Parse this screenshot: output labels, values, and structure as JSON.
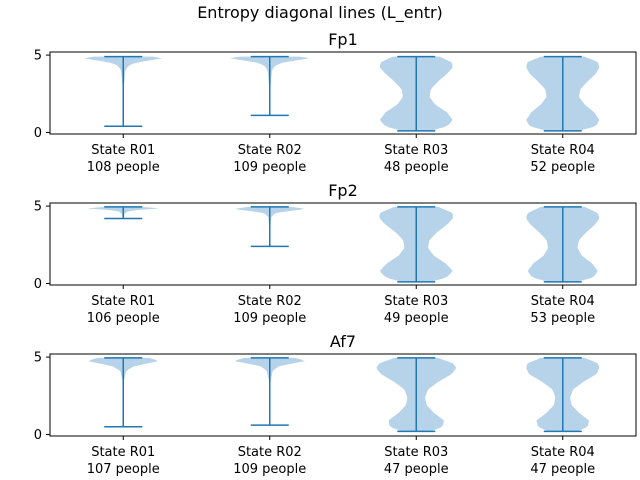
{
  "figure": {
    "title": "Entropy diagonal lines (L_entr)"
  },
  "colors": {
    "body": "#1f77b4",
    "violin": "#b6d3e9",
    "axes": "#000000",
    "background": "#ffffff"
  },
  "chart_data": [
    {
      "type": "violin",
      "title": "Fp1",
      "xlabel": "",
      "ylabel": "",
      "ylim": [
        -0.1,
        5.2
      ],
      "yticks": [
        0,
        5
      ],
      "grid": false,
      "legend": "none",
      "categories": [
        "State R01",
        "State R02",
        "State R03",
        "State R04"
      ],
      "counts": [
        "108 people",
        "109 people",
        "48 people",
        "52 people"
      ],
      "series": [
        {
          "min": 0.4,
          "max": 4.9,
          "profile": [
            [
              0.4,
              0.003
            ],
            [
              1.0,
              0.004
            ],
            [
              2.0,
              0.006
            ],
            [
              3.0,
              0.01
            ],
            [
              4.0,
              0.03
            ],
            [
              4.3,
              0.07
            ],
            [
              4.5,
              0.16
            ],
            [
              4.65,
              0.35
            ],
            [
              4.8,
              0.55
            ],
            [
              4.9,
              0.4
            ]
          ]
        },
        {
          "min": 1.1,
          "max": 4.9,
          "profile": [
            [
              1.1,
              0.003
            ],
            [
              2.0,
              0.005
            ],
            [
              3.0,
              0.01
            ],
            [
              4.0,
              0.03
            ],
            [
              4.3,
              0.07
            ],
            [
              4.5,
              0.16
            ],
            [
              4.65,
              0.35
            ],
            [
              4.8,
              0.55
            ],
            [
              4.9,
              0.4
            ]
          ]
        },
        {
          "min": 0.1,
          "max": 4.9,
          "profile": [
            [
              0.1,
              0.2
            ],
            [
              0.4,
              0.42
            ],
            [
              0.8,
              0.5
            ],
            [
              1.3,
              0.42
            ],
            [
              1.8,
              0.26
            ],
            [
              2.3,
              0.18
            ],
            [
              2.8,
              0.2
            ],
            [
              3.3,
              0.3
            ],
            [
              3.8,
              0.42
            ],
            [
              4.2,
              0.5
            ],
            [
              4.55,
              0.48
            ],
            [
              4.9,
              0.32
            ]
          ]
        },
        {
          "min": 0.1,
          "max": 4.9,
          "profile": [
            [
              0.1,
              0.22
            ],
            [
              0.4,
              0.45
            ],
            [
              0.8,
              0.5
            ],
            [
              1.3,
              0.43
            ],
            [
              1.8,
              0.3
            ],
            [
              2.3,
              0.22
            ],
            [
              2.8,
              0.24
            ],
            [
              3.3,
              0.34
            ],
            [
              3.8,
              0.45
            ],
            [
              4.2,
              0.5
            ],
            [
              4.55,
              0.48
            ],
            [
              4.9,
              0.3
            ]
          ]
        }
      ]
    },
    {
      "type": "violin",
      "title": "Fp2",
      "xlabel": "",
      "ylabel": "",
      "ylim": [
        -0.1,
        5.2
      ],
      "yticks": [
        0,
        5
      ],
      "grid": false,
      "legend": "none",
      "categories": [
        "State R01",
        "State R02",
        "State R03",
        "State R04"
      ],
      "counts": [
        "106 people",
        "109 people",
        "49 people",
        "53 people"
      ],
      "series": [
        {
          "min": 4.2,
          "max": 4.95,
          "profile": [
            [
              4.2,
              0.005
            ],
            [
              4.5,
              0.02
            ],
            [
              4.65,
              0.06
            ],
            [
              4.75,
              0.2
            ],
            [
              4.85,
              0.5
            ],
            [
              4.95,
              0.25
            ]
          ]
        },
        {
          "min": 2.4,
          "max": 4.95,
          "profile": [
            [
              2.4,
              0.003
            ],
            [
              3.5,
              0.006
            ],
            [
              4.3,
              0.02
            ],
            [
              4.55,
              0.08
            ],
            [
              4.7,
              0.3
            ],
            [
              4.8,
              0.5
            ],
            [
              4.95,
              0.3
            ]
          ]
        },
        {
          "min": 0.1,
          "max": 4.95,
          "profile": [
            [
              0.1,
              0.2
            ],
            [
              0.4,
              0.42
            ],
            [
              0.8,
              0.5
            ],
            [
              1.3,
              0.4
            ],
            [
              1.8,
              0.24
            ],
            [
              2.3,
              0.16
            ],
            [
              2.8,
              0.18
            ],
            [
              3.3,
              0.28
            ],
            [
              3.8,
              0.42
            ],
            [
              4.2,
              0.5
            ],
            [
              4.55,
              0.5
            ],
            [
              4.95,
              0.3
            ]
          ]
        },
        {
          "min": 0.1,
          "max": 4.95,
          "profile": [
            [
              0.1,
              0.2
            ],
            [
              0.4,
              0.42
            ],
            [
              0.8,
              0.48
            ],
            [
              1.3,
              0.4
            ],
            [
              1.8,
              0.26
            ],
            [
              2.3,
              0.2
            ],
            [
              2.8,
              0.22
            ],
            [
              3.3,
              0.32
            ],
            [
              3.8,
              0.44
            ],
            [
              4.2,
              0.5
            ],
            [
              4.55,
              0.48
            ],
            [
              4.95,
              0.3
            ]
          ]
        }
      ]
    },
    {
      "type": "violin",
      "title": "Af7",
      "xlabel": "",
      "ylabel": "",
      "ylim": [
        -0.1,
        5.2
      ],
      "yticks": [
        0,
        5
      ],
      "grid": false,
      "legend": "none",
      "categories": [
        "State R01",
        "State R02",
        "State R03",
        "State R04"
      ],
      "counts": [
        "107 people",
        "109 people",
        "47 people",
        "47 people"
      ],
      "series": [
        {
          "min": 0.5,
          "max": 4.95,
          "profile": [
            [
              0.5,
              0.003
            ],
            [
              1.5,
              0.004
            ],
            [
              2.5,
              0.006
            ],
            [
              3.5,
              0.012
            ],
            [
              4.1,
              0.04
            ],
            [
              4.4,
              0.14
            ],
            [
              4.6,
              0.34
            ],
            [
              4.75,
              0.5
            ],
            [
              4.95,
              0.35
            ]
          ]
        },
        {
          "min": 0.6,
          "max": 4.95,
          "profile": [
            [
              0.6,
              0.003
            ],
            [
              1.5,
              0.004
            ],
            [
              2.5,
              0.006
            ],
            [
              3.5,
              0.012
            ],
            [
              4.1,
              0.04
            ],
            [
              4.4,
              0.12
            ],
            [
              4.6,
              0.32
            ],
            [
              4.75,
              0.5
            ],
            [
              4.95,
              0.35
            ]
          ]
        },
        {
          "min": 0.2,
          "max": 4.95,
          "profile": [
            [
              0.2,
              0.2
            ],
            [
              0.5,
              0.36
            ],
            [
              0.9,
              0.38
            ],
            [
              1.4,
              0.24
            ],
            [
              1.9,
              0.14
            ],
            [
              2.4,
              0.12
            ],
            [
              2.9,
              0.16
            ],
            [
              3.4,
              0.3
            ],
            [
              3.9,
              0.48
            ],
            [
              4.3,
              0.55
            ],
            [
              4.6,
              0.5
            ],
            [
              4.95,
              0.3
            ]
          ]
        },
        {
          "min": 0.2,
          "max": 4.95,
          "profile": [
            [
              0.2,
              0.2
            ],
            [
              0.5,
              0.34
            ],
            [
              0.9,
              0.36
            ],
            [
              1.4,
              0.22
            ],
            [
              1.9,
              0.12
            ],
            [
              2.4,
              0.1
            ],
            [
              2.9,
              0.14
            ],
            [
              3.4,
              0.28
            ],
            [
              3.9,
              0.46
            ],
            [
              4.3,
              0.5
            ],
            [
              4.6,
              0.48
            ],
            [
              4.95,
              0.3
            ]
          ]
        }
      ]
    }
  ]
}
